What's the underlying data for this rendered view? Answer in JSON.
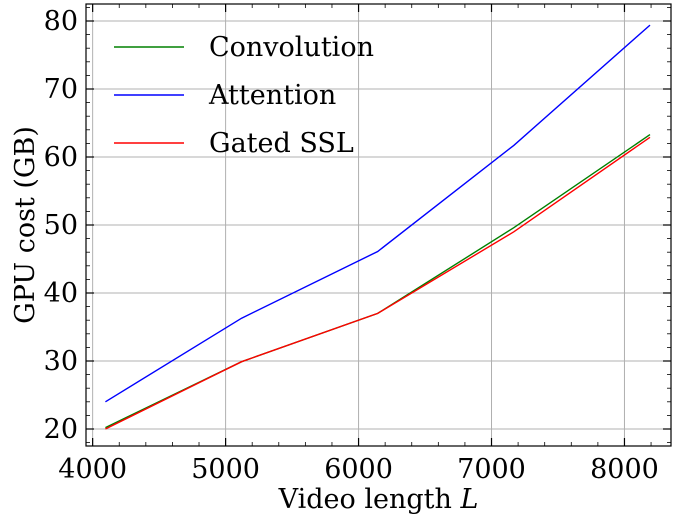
{
  "chart_data": {
    "type": "line",
    "xlabel": "Video length",
    "xlabel_var": "L",
    "ylabel": "GPU cost (GB)",
    "xlim": [
      3950,
      8350
    ],
    "ylim": [
      17.5,
      82.5
    ],
    "xticks": [
      4000,
      5000,
      6000,
      7000,
      8000
    ],
    "yticks": [
      20,
      30,
      40,
      50,
      60,
      70,
      80
    ],
    "grid": true,
    "legend_position": "top-left",
    "x": [
      4096,
      5120,
      6144,
      7168,
      8192
    ],
    "series": [
      {
        "name": "Convolution",
        "color": "#008000",
        "values": [
          20.2,
          29.9,
          37.0,
          49.6,
          63.3
        ]
      },
      {
        "name": "Attention",
        "color": "#0000ff",
        "values": [
          24.0,
          36.3,
          46.1,
          61.7,
          79.4
        ]
      },
      {
        "name": "Gated SSL",
        "color": "#ff0000",
        "values": [
          20.0,
          29.9,
          37.0,
          49.0,
          62.9
        ]
      }
    ]
  }
}
